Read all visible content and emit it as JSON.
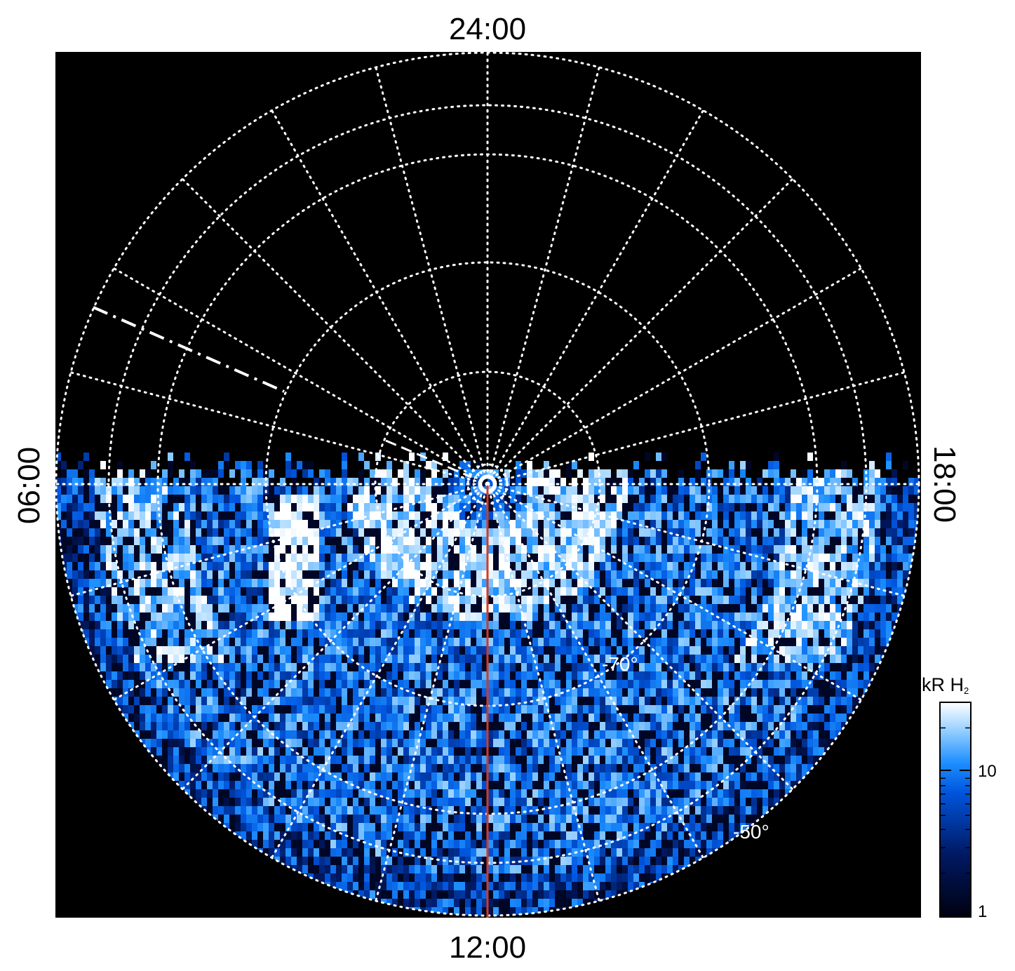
{
  "chart_data": {
    "type": "heatmap",
    "projection": "polar",
    "local_time_labels": {
      "top": "24:00",
      "bottom": "12:00",
      "left": "06:00",
      "right": "18:00"
    },
    "latitude_labels": [
      "-70°",
      "-50°"
    ],
    "colorbar": {
      "title_main": "kR H",
      "title_sub": "2",
      "scale": "log",
      "range": [
        1,
        30
      ],
      "ticks": [
        "1",
        "10"
      ]
    },
    "grid": true,
    "background_color": "#000000",
    "grid_color": "#ffffff",
    "meridian_line_color": "#d9381e",
    "colormap": [
      "#000010",
      "#001a66",
      "#0055dd",
      "#1e90ff",
      "#9fd4ff",
      "#ffffff"
    ]
  }
}
